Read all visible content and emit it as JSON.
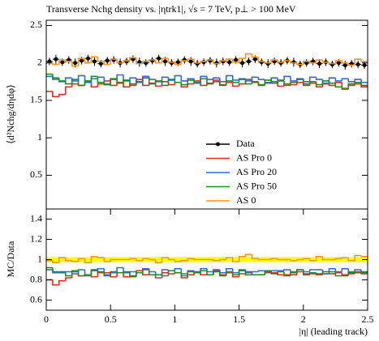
{
  "chart_data": [
    {
      "type": "histogram",
      "title": "Transverse Nchg density vs. |ηtrk1|, √s = 7 TeV, p⊥ > 100 MeV",
      "ylabel": "⟨d²Nchg/dηdφ⟩",
      "bins": [
        0,
        0.05,
        0.1,
        0.15,
        0.2,
        0.25,
        0.3,
        0.35,
        0.4,
        0.45,
        0.5,
        0.55,
        0.6,
        0.65,
        0.7,
        0.75,
        0.8,
        0.85,
        0.9,
        0.95,
        1,
        1.05,
        1.1,
        1.15,
        1.2,
        1.25,
        1.3,
        1.35,
        1.4,
        1.45,
        1.5,
        1.55,
        1.6,
        1.65,
        1.7,
        1.75,
        1.8,
        1.85,
        1.9,
        1.95,
        2,
        2.05,
        2.1,
        2.15,
        2.2,
        2.25,
        2.3,
        2.35,
        2.4,
        2.45,
        2.5
      ],
      "xlim": [
        0,
        2.5
      ],
      "ylim": [
        0.05,
        2.57
      ],
      "yticks": [
        0.5,
        1,
        1.5,
        2,
        2.5
      ],
      "series": [
        {
          "name": "Data",
          "color": "#000000",
          "marker": "point",
          "values": [
            2.02,
            2.05,
            2.01,
            2.04,
            2.0,
            2.03,
            2.06,
            2.02,
            1.99,
            2.03,
            2.04,
            2.0,
            2.02,
            2.05,
            2.01,
            2.0,
            2.03,
            2.06,
            2.02,
            2.0,
            2.01,
            2.04,
            2.02,
            1.99,
            2.01,
            2.03,
            2.0,
            2.02,
            2.01,
            2.04,
            2.0,
            2.02,
            2.05,
            2.01,
            1.99,
            2.02,
            2.0,
            2.03,
            2.01,
            1.98,
            2.0,
            2.02,
            1.99,
            2.01,
            1.98,
            2.0,
            1.97,
            1.99,
            1.98,
            1.97
          ],
          "errors": [
            0.05,
            0.06,
            0.05,
            0.05,
            0.06,
            0.05,
            0.05,
            0.06,
            0.05,
            0.05,
            0.05,
            0.06,
            0.05,
            0.05,
            0.06,
            0.05,
            0.05,
            0.05,
            0.06,
            0.05,
            0.05,
            0.05,
            0.06,
            0.05,
            0.05,
            0.05,
            0.06,
            0.05,
            0.05,
            0.05,
            0.06,
            0.05,
            0.05,
            0.05,
            0.06,
            0.05,
            0.05,
            0.05,
            0.06,
            0.05,
            0.05,
            0.05,
            0.06,
            0.05,
            0.05,
            0.05,
            0.06,
            0.05,
            0.05,
            0.05
          ]
        },
        {
          "name": "AS Pro 0",
          "color": "#e8281c",
          "marker": "line",
          "values": [
            1.62,
            1.55,
            1.58,
            1.68,
            1.72,
            1.7,
            1.75,
            1.68,
            1.72,
            1.76,
            1.7,
            1.74,
            1.68,
            1.72,
            1.78,
            1.7,
            1.73,
            1.69,
            1.75,
            1.71,
            1.74,
            1.68,
            1.72,
            1.76,
            1.7,
            1.73,
            1.77,
            1.71,
            1.74,
            1.69,
            1.72,
            1.78,
            1.74,
            1.7,
            1.73,
            1.75,
            1.69,
            1.72,
            1.71,
            1.74,
            1.7,
            1.73,
            1.68,
            1.72,
            1.7,
            1.74,
            1.66,
            1.7,
            1.72,
            1.68
          ]
        },
        {
          "name": "AS Pro 20",
          "color": "#3366ee",
          "marker": "line",
          "values": [
            1.82,
            1.78,
            1.75,
            1.8,
            1.76,
            1.83,
            1.74,
            1.79,
            1.81,
            1.72,
            1.78,
            1.84,
            1.76,
            1.8,
            1.74,
            1.82,
            1.78,
            1.75,
            1.81,
            1.77,
            1.83,
            1.76,
            1.79,
            1.74,
            1.82,
            1.78,
            1.8,
            1.75,
            1.83,
            1.77,
            1.79,
            1.76,
            1.81,
            1.78,
            1.74,
            1.8,
            1.77,
            1.82,
            1.76,
            1.79,
            1.75,
            1.81,
            1.78,
            1.73,
            1.8,
            1.76,
            1.79,
            1.75,
            1.78,
            1.74
          ]
        },
        {
          "name": "AS Pro 50",
          "color": "#1e8c1e",
          "marker": "line",
          "values": [
            1.85,
            1.8,
            1.76,
            1.72,
            1.78,
            1.7,
            1.76,
            1.82,
            1.74,
            1.71,
            1.79,
            1.73,
            1.77,
            1.7,
            1.75,
            1.8,
            1.72,
            1.76,
            1.7,
            1.78,
            1.74,
            1.71,
            1.77,
            1.73,
            1.79,
            1.72,
            1.75,
            1.7,
            1.76,
            1.74,
            1.78,
            1.72,
            1.75,
            1.71,
            1.77,
            1.73,
            1.76,
            1.7,
            1.74,
            1.78,
            1.72,
            1.75,
            1.71,
            1.76,
            1.73,
            1.68,
            1.65,
            1.72,
            1.74,
            1.7
          ]
        },
        {
          "name": "AS 0",
          "color": "#f7941d",
          "marker": "line",
          "values": [
            2.0,
            1.98,
            2.04,
            2.02,
            1.96,
            2.06,
            2.0,
            2.08,
            2.02,
            1.98,
            2.05,
            2.0,
            2.03,
            2.07,
            1.99,
            2.02,
            2.04,
            2.0,
            2.06,
            2.01,
            1.98,
            2.03,
            2.05,
            2.0,
            2.02,
            2.04,
            1.99,
            2.03,
            2.05,
            2.01,
            2.06,
            2.12,
            2.08,
            2.02,
            2.0,
            2.04,
            2.01,
            2.03,
            2.0,
            1.98,
            2.02,
            2.0,
            2.04,
            2.01,
            1.99,
            2.03,
            2.0,
            1.97,
            2.05,
            2.02
          ]
        }
      ]
    },
    {
      "type": "histogram",
      "ylabel": "MC/Data",
      "xlabel": "|η| (leading track)",
      "bins": [
        0,
        0.05,
        0.1,
        0.15,
        0.2,
        0.25,
        0.3,
        0.35,
        0.4,
        0.45,
        0.5,
        0.55,
        0.6,
        0.65,
        0.7,
        0.75,
        0.8,
        0.85,
        0.9,
        0.95,
        1,
        1.05,
        1.1,
        1.15,
        1.2,
        1.25,
        1.3,
        1.35,
        1.4,
        1.45,
        1.5,
        1.55,
        1.6,
        1.65,
        1.7,
        1.75,
        1.8,
        1.85,
        1.9,
        1.95,
        2,
        2.05,
        2.1,
        2.15,
        2.2,
        2.25,
        2.3,
        2.35,
        2.4,
        2.45,
        2.5
      ],
      "xlim": [
        0,
        2.5
      ],
      "xticks": [
        0,
        0.5,
        1,
        1.5,
        2,
        2.5
      ],
      "ylim": [
        0.5,
        1.5
      ],
      "yticks": [
        0.6,
        0.8,
        1,
        1.2,
        1.4
      ],
      "band": {
        "low": 0.975,
        "high": 1.025,
        "color": "#ffff00"
      },
      "series": [
        {
          "color": "#e8281c",
          "values": [
            0.8,
            0.75,
            0.79,
            0.82,
            0.86,
            0.84,
            0.85,
            0.83,
            0.87,
            0.87,
            0.83,
            0.87,
            0.83,
            0.84,
            0.89,
            0.85,
            0.85,
            0.82,
            0.87,
            0.86,
            0.87,
            0.82,
            0.85,
            0.88,
            0.85,
            0.85,
            0.89,
            0.85,
            0.87,
            0.83,
            0.86,
            0.88,
            0.85,
            0.85,
            0.87,
            0.87,
            0.85,
            0.85,
            0.85,
            0.88,
            0.85,
            0.86,
            0.85,
            0.86,
            0.86,
            0.87,
            0.85,
            0.86,
            0.87,
            0.86
          ]
        },
        {
          "color": "#3366ee",
          "values": [
            0.9,
            0.87,
            0.87,
            0.88,
            0.88,
            0.9,
            0.84,
            0.89,
            0.91,
            0.85,
            0.87,
            0.92,
            0.87,
            0.88,
            0.87,
            0.91,
            0.88,
            0.85,
            0.9,
            0.89,
            0.91,
            0.86,
            0.89,
            0.88,
            0.91,
            0.88,
            0.9,
            0.87,
            0.91,
            0.87,
            0.9,
            0.87,
            0.88,
            0.89,
            0.88,
            0.89,
            0.89,
            0.9,
            0.88,
            0.9,
            0.88,
            0.9,
            0.9,
            0.86,
            0.91,
            0.88,
            0.91,
            0.88,
            0.9,
            0.88
          ]
        },
        {
          "color": "#1e8c1e",
          "values": [
            0.92,
            0.88,
            0.88,
            0.84,
            0.89,
            0.84,
            0.85,
            0.9,
            0.88,
            0.84,
            0.88,
            0.87,
            0.88,
            0.83,
            0.87,
            0.9,
            0.85,
            0.85,
            0.84,
            0.89,
            0.87,
            0.84,
            0.88,
            0.87,
            0.89,
            0.85,
            0.88,
            0.84,
            0.88,
            0.85,
            0.89,
            0.85,
            0.85,
            0.85,
            0.89,
            0.86,
            0.88,
            0.84,
            0.87,
            0.9,
            0.86,
            0.87,
            0.86,
            0.88,
            0.88,
            0.84,
            0.84,
            0.87,
            0.88,
            0.87
          ]
        },
        {
          "color": "#f7941d",
          "values": [
            0.99,
            0.97,
            1.02,
            0.99,
            0.98,
            1.01,
            0.97,
            1.03,
            1.02,
            0.98,
            1.0,
            1.0,
            1.0,
            1.01,
            0.99,
            1.01,
            1.0,
            0.97,
            1.02,
            1.0,
            0.98,
            0.99,
            1.01,
            1.0,
            1.0,
            1.0,
            0.99,
            1.0,
            1.02,
            0.98,
            1.03,
            1.05,
            1.01,
            1.0,
            1.0,
            1.01,
            1.0,
            1.0,
            0.99,
            1.0,
            1.01,
            0.99,
            1.03,
            1.0,
            1.0,
            1.01,
            1.02,
            0.99,
            1.04,
            1.03
          ]
        }
      ]
    }
  ]
}
